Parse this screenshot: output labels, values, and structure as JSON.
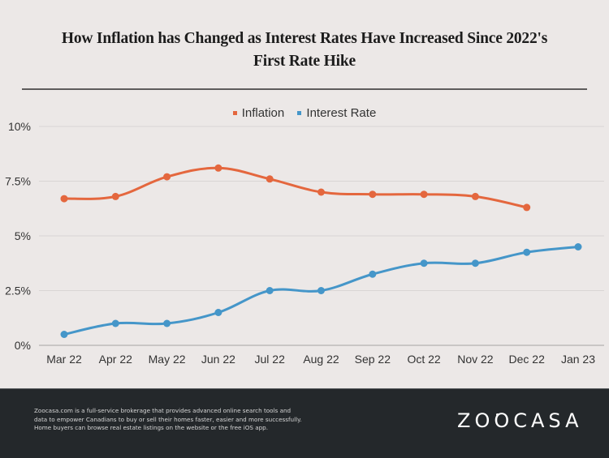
{
  "chart_data": {
    "type": "line",
    "title": "How Inflation has Changed as Interest Rates Have Increased Since 2022's First Rate Hike",
    "title_lines": [
      "How Inflation has Changed as Interest Rates Have Increased Since 2022's",
      "First Rate Hike"
    ],
    "xlabel": "",
    "ylabel": "",
    "categories": [
      "Mar 22",
      "Apr 22",
      "May 22",
      "Jun 22",
      "Jul 22",
      "Aug 22",
      "Sep 22",
      "Oct 22",
      "Nov 22",
      "Dec 22",
      "Jan 23"
    ],
    "series": [
      {
        "name": "Inflation",
        "color": "#e4673e",
        "values": [
          6.7,
          6.8,
          7.7,
          8.1,
          7.6,
          7.0,
          6.9,
          6.9,
          6.8,
          6.3,
          null
        ]
      },
      {
        "name": "Interest Rate",
        "color": "#4596c9",
        "values": [
          0.5,
          1.0,
          1.0,
          1.5,
          2.5,
          2.5,
          3.25,
          3.75,
          3.75,
          4.25,
          4.5
        ]
      }
    ],
    "ylim": [
      0,
      10
    ],
    "yticks": [
      0,
      2.5,
      5,
      7.5,
      10
    ],
    "ytick_labels": [
      "0%",
      "2.5%",
      "5%",
      "7.5%",
      "10%"
    ],
    "grid": true,
    "legend": "top-center"
  },
  "footer": {
    "text_lines": [
      "Zoocasa.com is a full-service brokerage that provides advanced online search tools and",
      "data to empower Canadians to buy or sell their homes faster, easier and more successfully.",
      "Home buyers can browse real estate listings on the website or the free iOS app."
    ],
    "logo": "ZOOCASA"
  }
}
